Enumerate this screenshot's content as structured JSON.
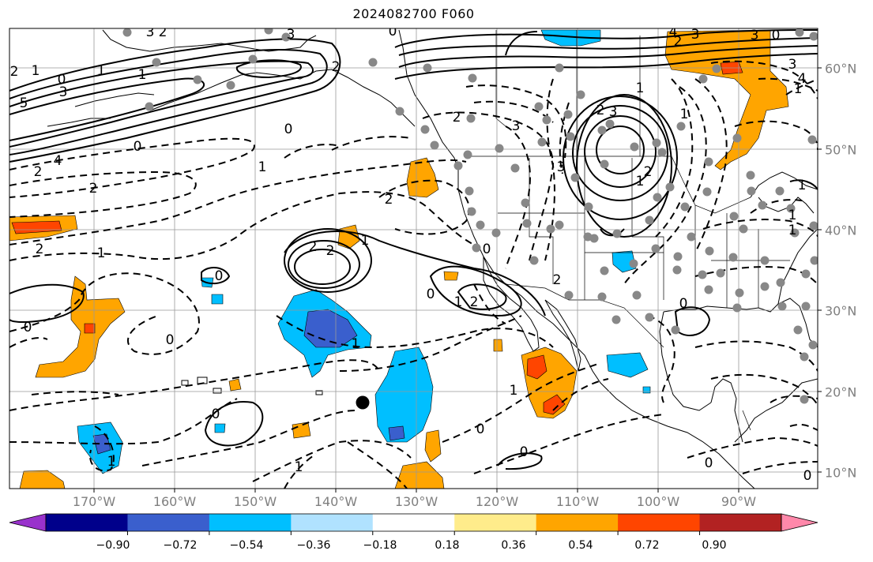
{
  "title": "2024082700 F060",
  "lon_labels": [
    "170°W",
    "160°W",
    "150°W",
    "140°W",
    "130°W",
    "120°W",
    "110°W",
    "100°W",
    "90°W"
  ],
  "lat_labels": [
    "60°N",
    "50°N",
    "40°N",
    "30°N",
    "20°N",
    "10°N"
  ],
  "colorbar": {
    "colors": [
      "#9932CC",
      "#00008B",
      "#3A5FCD",
      "#00BFFF",
      "#B0E2FF",
      "#FFFFFF",
      "#FFEC8B",
      "#FFA500",
      "#FF4500",
      "#B22222",
      "#FF88AA"
    ],
    "tick_labels": [
      "−0.90",
      "−0.72",
      "−0.54",
      "−0.36",
      "−0.18",
      "0.18",
      "0.36",
      "0.54",
      "0.72",
      "0.90"
    ]
  },
  "contour_labels": [
    "2",
    "1",
    "0",
    "3",
    "5",
    "4",
    "1",
    "2",
    "2",
    "0",
    "2",
    "0",
    "3",
    "1",
    "2",
    "0",
    "2",
    "2",
    "1",
    "2",
    "2",
    "1",
    "0",
    "1",
    "0",
    "1",
    "0",
    "2",
    "1",
    "0",
    "1",
    "3",
    "2",
    "3",
    "2",
    "3",
    "3",
    "0",
    "1",
    "3",
    "2",
    "1",
    "1",
    "2",
    "3",
    "4",
    "1",
    "0",
    "1",
    "0",
    "0",
    "1",
    "0",
    "0",
    "1",
    "0",
    "3",
    "4",
    "1",
    "2",
    "0",
    "1"
  ]
}
